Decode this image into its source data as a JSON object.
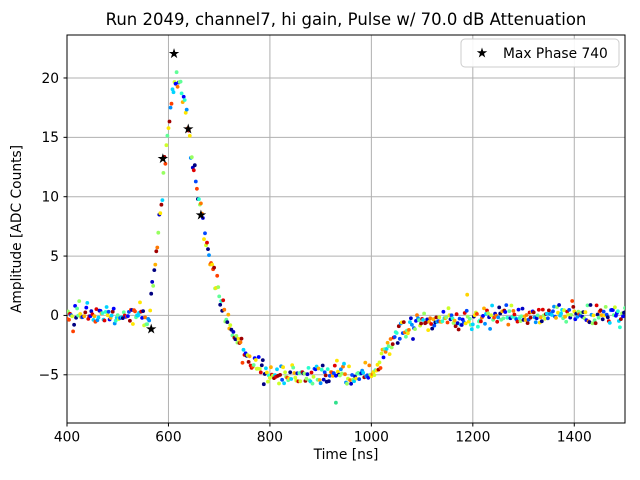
{
  "chart_data": {
    "type": "scatter",
    "title": "Run 2049, channel7, hi gain, Pulse w/ 70.0 dB Attenuation",
    "xlabel": "Time [ns]",
    "ylabel": "Amplitude [ADC Counts]",
    "xlim": [
      400,
      1500
    ],
    "ylim": [
      -9.06,
      23.62
    ],
    "xticks": [
      400,
      600,
      800,
      1000,
      1200,
      1400
    ],
    "yticks": [
      -5,
      0,
      5,
      10,
      15,
      20
    ],
    "grid": true,
    "grid_color": "#b0b0b0",
    "legend": {
      "position": "upper-right",
      "entries": [
        {
          "marker": "star",
          "color": "#000000",
          "label": "Max Phase 740"
        }
      ]
    },
    "series_coloring": "many overlaid waveform phases colored with a jet palette",
    "palette": [
      "#000080",
      "#0000c8",
      "#0000ff",
      "#0048ff",
      "#0090ff",
      "#00d4ff",
      "#29ffce",
      "#60ff97",
      "#97ff60",
      "#ceff29",
      "#ffe600",
      "#ffb000",
      "#ff7800",
      "#ff4000",
      "#e00000",
      "#a00000"
    ],
    "marker_diameter_px": 3.8,
    "noise_sigma_adc": 0.45,
    "sample_step_ns": 2,
    "pulse_envelope": [
      [
        400,
        0.15
      ],
      [
        430,
        0.1
      ],
      [
        460,
        0.15
      ],
      [
        490,
        0.1
      ],
      [
        520,
        0.15
      ],
      [
        540,
        0.1
      ],
      [
        550,
        -0.1
      ],
      [
        556,
        -0.35
      ],
      [
        560,
        0.0
      ],
      [
        564,
        0.9
      ],
      [
        568,
        2.0
      ],
      [
        572,
        3.4
      ],
      [
        576,
        5.0
      ],
      [
        580,
        6.8
      ],
      [
        584,
        8.7
      ],
      [
        588,
        10.7
      ],
      [
        592,
        12.6
      ],
      [
        596,
        14.4
      ],
      [
        600,
        16.1
      ],
      [
        604,
        17.5
      ],
      [
        608,
        18.6
      ],
      [
        612,
        19.4
      ],
      [
        616,
        19.8
      ],
      [
        620,
        19.7
      ],
      [
        624,
        19.2
      ],
      [
        628,
        18.4
      ],
      [
        633,
        17.2
      ],
      [
        638,
        15.8
      ],
      [
        643,
        14.3
      ],
      [
        648,
        12.9
      ],
      [
        653,
        11.5
      ],
      [
        658,
        10.2
      ],
      [
        663,
        8.9
      ],
      [
        668,
        7.7
      ],
      [
        673,
        6.6
      ],
      [
        678,
        5.6
      ],
      [
        683,
        4.6
      ],
      [
        688,
        3.7
      ],
      [
        693,
        2.9
      ],
      [
        698,
        2.2
      ],
      [
        703,
        1.5
      ],
      [
        708,
        0.9
      ],
      [
        713,
        0.3
      ],
      [
        718,
        -0.3
      ],
      [
        723,
        -0.9
      ],
      [
        728,
        -1.4
      ],
      [
        734,
        -1.9
      ],
      [
        740,
        -2.4
      ],
      [
        747,
        -2.9
      ],
      [
        754,
        -3.3
      ],
      [
        762,
        -3.7
      ],
      [
        770,
        -4.1
      ],
      [
        780,
        -4.4
      ],
      [
        790,
        -4.7
      ],
      [
        802,
        -4.9
      ],
      [
        816,
        -5.0
      ],
      [
        832,
        -5.05
      ],
      [
        850,
        -5.1
      ],
      [
        880,
        -5.1
      ],
      [
        910,
        -5.1
      ],
      [
        940,
        -5.1
      ],
      [
        970,
        -5.05
      ],
      [
        995,
        -4.95
      ],
      [
        1004,
        -4.75
      ],
      [
        1012,
        -4.4
      ],
      [
        1020,
        -3.9
      ],
      [
        1028,
        -3.3
      ],
      [
        1036,
        -2.7
      ],
      [
        1044,
        -2.1
      ],
      [
        1052,
        -1.7
      ],
      [
        1060,
        -1.3
      ],
      [
        1068,
        -1.05
      ],
      [
        1076,
        -0.85
      ],
      [
        1090,
        -0.7
      ],
      [
        1110,
        -0.55
      ],
      [
        1140,
        -0.45
      ],
      [
        1170,
        -0.35
      ],
      [
        1200,
        -0.25
      ],
      [
        1240,
        -0.15
      ],
      [
        1280,
        -0.1
      ],
      [
        1320,
        -0.05
      ],
      [
        1360,
        0.0
      ],
      [
        1400,
        0.0
      ],
      [
        1450,
        0.05
      ],
      [
        1500,
        0.05
      ]
    ],
    "max_phase_points": [
      [
        566,
        -1.15
      ],
      [
        589,
        13.2
      ],
      [
        611,
        22.05
      ],
      [
        639,
        15.7
      ],
      [
        664,
        8.45
      ]
    ],
    "outliers": [
      {
        "x": 930,
        "y": -7.35,
        "color": "#2fe08c"
      },
      {
        "x": 1189,
        "y": 1.75,
        "color": "#ffd400"
      }
    ]
  }
}
